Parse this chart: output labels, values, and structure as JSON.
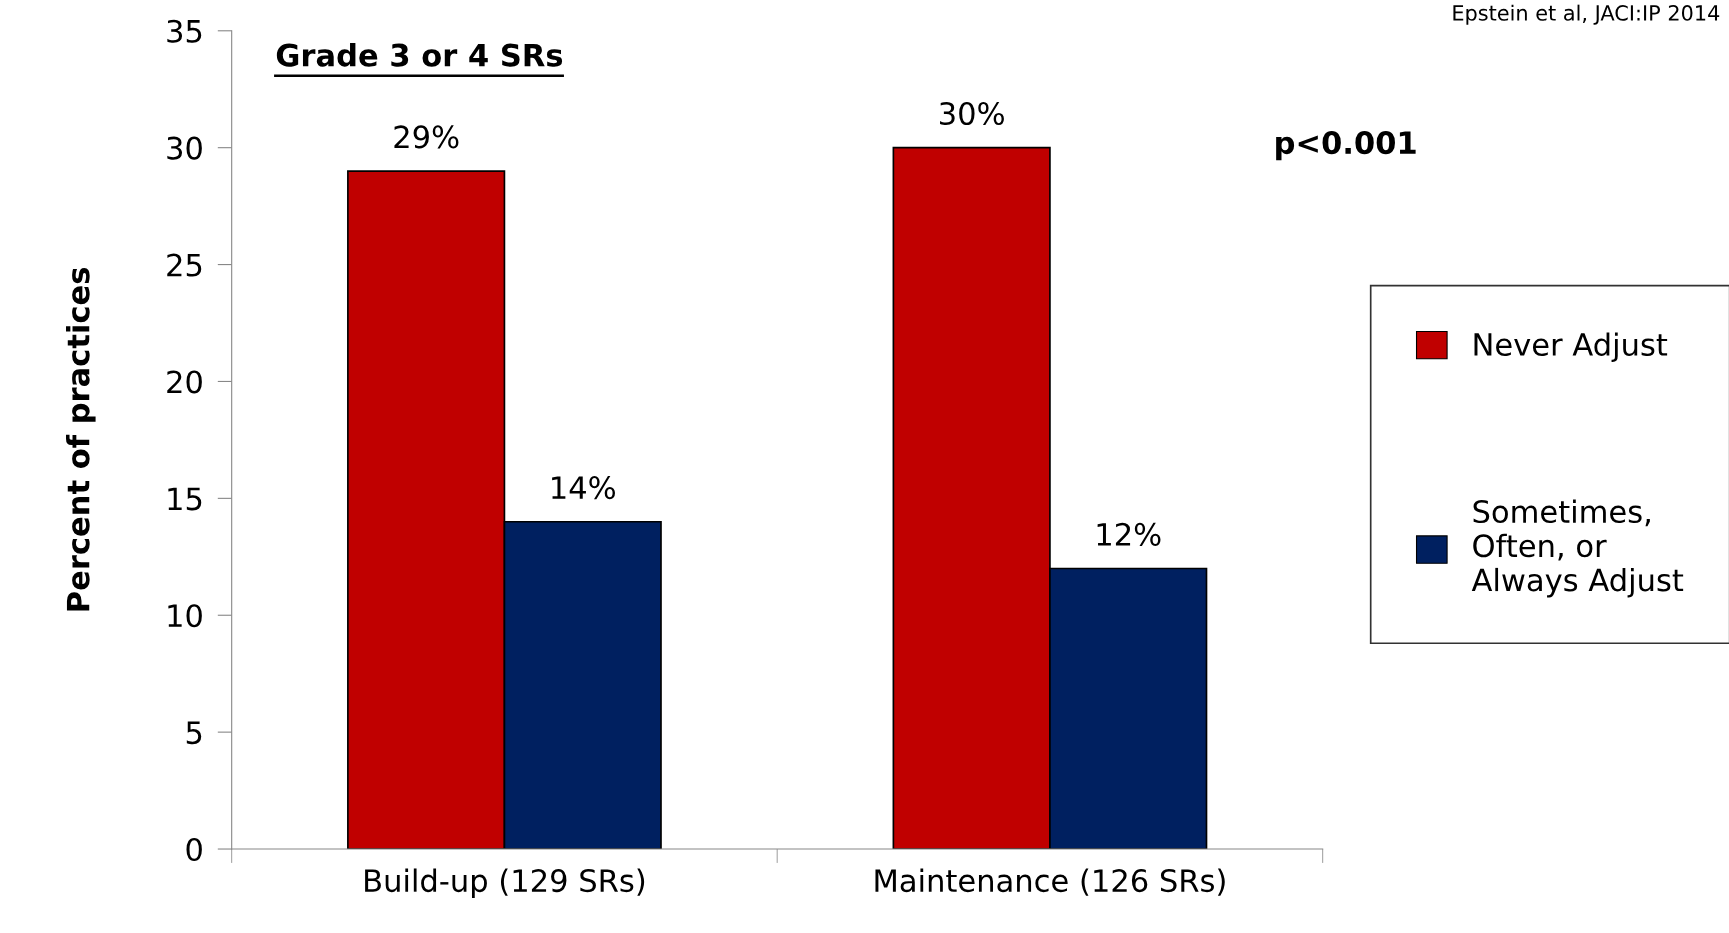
{
  "chart_data": {
    "type": "bar",
    "title": "Grade 3 or 4 SRs",
    "ylabel": "Percent of practices",
    "categories": [
      "Build-up (129 SRs)",
      "Maintenance (126 SRs)"
    ],
    "series": [
      {
        "name": "Never Adjust",
        "color": "#c00000",
        "values": [
          29,
          30
        ],
        "value_labels": [
          "29%",
          "30%"
        ]
      },
      {
        "name": "Sometimes,\nOften, or\nAlways Adjust",
        "color": "#002060",
        "values": [
          14,
          12
        ],
        "value_labels": [
          "14%",
          "12%"
        ]
      }
    ],
    "ylim": [
      0,
      35
    ],
    "yticks": [
      0,
      5,
      10,
      15,
      20,
      25,
      30,
      35
    ],
    "annotations": [
      "p<0.001",
      "Epstein et al, JACI:IP 2014"
    ],
    "legend": "right",
    "grid": false
  }
}
